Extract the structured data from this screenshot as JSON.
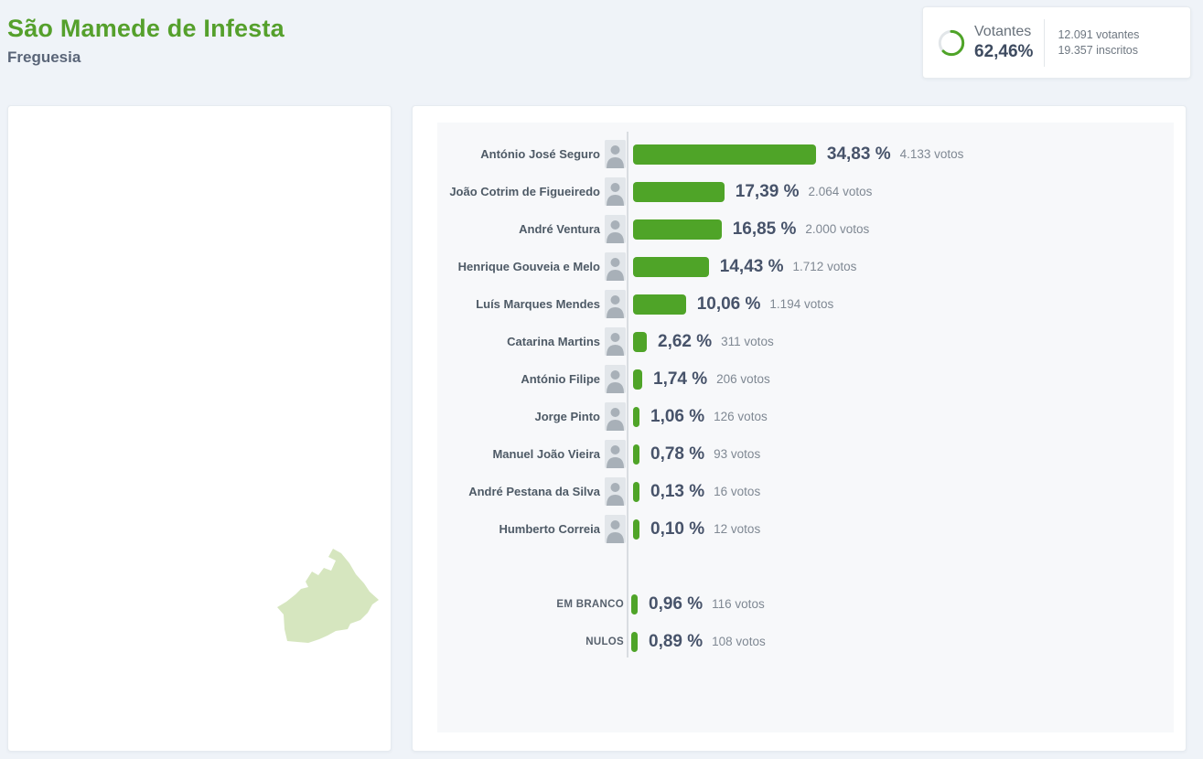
{
  "header": {
    "title": "São Mamede de Infesta",
    "subtitle": "Freguesia"
  },
  "turnout": {
    "label": "Votantes",
    "percent": "62,46%",
    "percent_value": 62.46,
    "voters": "12.091 votantes",
    "registered": "19.357 inscritos"
  },
  "colors": {
    "accent_green": "#55a02c",
    "bar_green": "#4fa428",
    "map_green": "#d6e6bf",
    "donut_track": "#e2e6e9"
  },
  "chart_data": {
    "type": "bar",
    "orientation": "horizontal",
    "value_unit": "percent",
    "xlim": [
      0,
      35
    ],
    "grid": false,
    "legend": false,
    "rows": [
      {
        "kind": "candidate",
        "name": "António José Seguro",
        "percent_label": "34,83 %",
        "percent": 34.83,
        "votes_label": "4.133 votos",
        "votes": 4133
      },
      {
        "kind": "candidate",
        "name": "João Cotrim de Figueiredo",
        "percent_label": "17,39 %",
        "percent": 17.39,
        "votes_label": "2.064 votos",
        "votes": 2064
      },
      {
        "kind": "candidate",
        "name": "André Ventura",
        "percent_label": "16,85 %",
        "percent": 16.85,
        "votes_label": "2.000 votos",
        "votes": 2000
      },
      {
        "kind": "candidate",
        "name": "Henrique Gouveia e Melo",
        "percent_label": "14,43 %",
        "percent": 14.43,
        "votes_label": "1.712 votos",
        "votes": 1712
      },
      {
        "kind": "candidate",
        "name": "Luís Marques Mendes",
        "percent_label": "10,06 %",
        "percent": 10.06,
        "votes_label": "1.194 votos",
        "votes": 1194
      },
      {
        "kind": "candidate",
        "name": "Catarina Martins",
        "percent_label": "2,62 %",
        "percent": 2.62,
        "votes_label": "311 votos",
        "votes": 311
      },
      {
        "kind": "candidate",
        "name": "António Filipe",
        "percent_label": "1,74 %",
        "percent": 1.74,
        "votes_label": "206 votos",
        "votes": 206
      },
      {
        "kind": "candidate",
        "name": "Jorge Pinto",
        "percent_label": "1,06 %",
        "percent": 1.06,
        "votes_label": "126 votos",
        "votes": 126
      },
      {
        "kind": "candidate",
        "name": "Manuel João Vieira",
        "percent_label": "0,78 %",
        "percent": 0.78,
        "votes_label": "93 votos",
        "votes": 93
      },
      {
        "kind": "candidate",
        "name": "André Pestana da Silva",
        "percent_label": "0,13 %",
        "percent": 0.13,
        "votes_label": "16 votos",
        "votes": 16
      },
      {
        "kind": "candidate",
        "name": "Humberto Correia",
        "percent_label": "0,10 %",
        "percent": 0.1,
        "votes_label": "12 votos",
        "votes": 12
      },
      {
        "kind": "special",
        "name": "EM BRANCO",
        "percent_label": "0,96 %",
        "percent": 0.96,
        "votes_label": "116 votos",
        "votes": 116
      },
      {
        "kind": "special",
        "name": "NULOS",
        "percent_label": "0,89 %",
        "percent": 0.89,
        "votes_label": "108 votos",
        "votes": 108
      }
    ]
  }
}
